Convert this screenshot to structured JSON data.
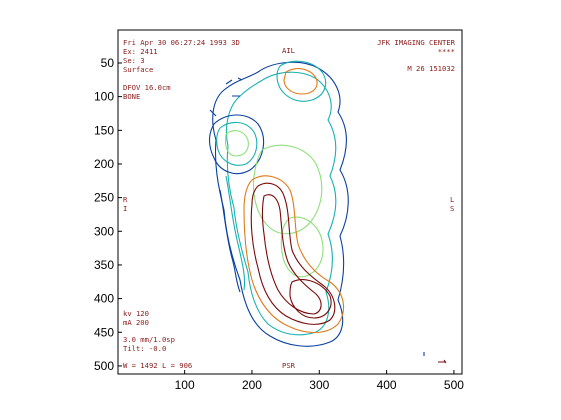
{
  "axes": {
    "x_ticks": [
      "100",
      "200",
      "300",
      "400",
      "500"
    ],
    "y_ticks": [
      "50",
      "100",
      "150",
      "200",
      "250",
      "300",
      "350",
      "400",
      "450",
      "500"
    ],
    "x_range": [
      1,
      512
    ],
    "y_range": [
      1,
      512
    ]
  },
  "overlay": {
    "top_left": [
      "Fri Apr 30 06:27:24 1993 3D",
      "Ex: 2411",
      "Se: 3",
      "Surface"
    ],
    "top_center": "AIL",
    "top_right": [
      "JFK IMAGING CENTER",
      "****"
    ],
    "right_info": "M 26  151032",
    "fov": [
      "DFOV 16.0cm",
      "BONE"
    ],
    "left_marker": [
      "R",
      "I"
    ],
    "right_marker": [
      "L",
      "S"
    ],
    "technique": [
      "kv 120",
      "mA 200"
    ],
    "slice": [
      "3.0 mm/1.0sp",
      "Tilt: -0.0"
    ],
    "window": "W = 1492  L = 906",
    "bottom_center": "PSR"
  },
  "colors": {
    "dark_red": "#7a0a0a",
    "orange": "#e07a1a",
    "light_green": "#8ee07a",
    "teal": "#19b0b0",
    "blue": "#0a40a0",
    "text": "#8a1a1a"
  }
}
